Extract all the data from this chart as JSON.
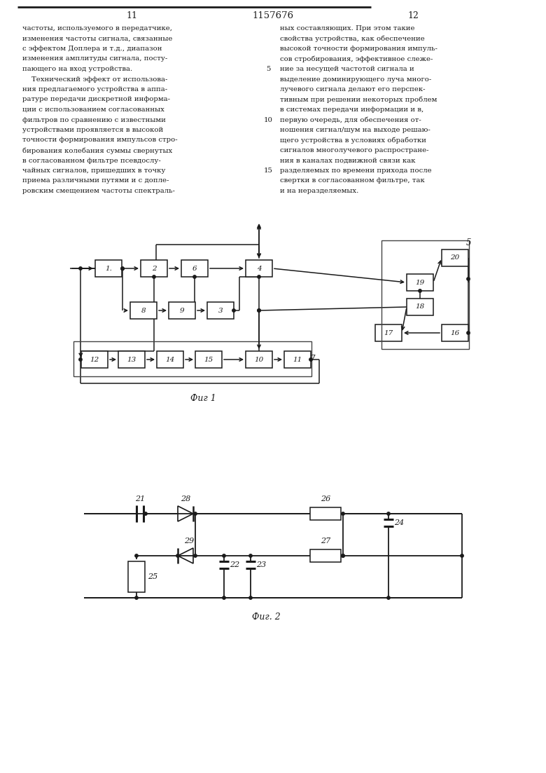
{
  "bg_color": "#ffffff",
  "text_color": "#1a1a1a",
  "line_color": "#1a1a1a",
  "page_title": "1157676",
  "fig1_caption": "Фиг 1",
  "fig2_caption": "Фиг. 2",
  "left_text": [
    "частоты, используемого в передатчике,",
    "изменения частоты сигнала, связанные",
    "с эффектом Доплера и т.д., диапазон",
    "изменения амплитуды сигнала, посту-",
    "пающего на вход устройства.",
    "    Технический эффект от использова-",
    "ния предлагаемого устройства в аппа-",
    "ратуре передачи дискретной информа-",
    "ции с использованием согласованных",
    "фильтров по сравнению с известными",
    "устройствами проявляется в высокой",
    "точности формирования импульсов стро-",
    "бирования колебания суммы свернутых",
    "в согласованном фильтре псевдослу-",
    "чайных сигналов, пришедших в точку",
    "приема различными путями и с допле-",
    "ровским смещением частоты спектраль-"
  ],
  "right_text": [
    "ных составляющих. При этом такие",
    "свойства устройства, как обеспечение",
    "высокой точности формирования импуль-",
    "сов стробирования, эффективное слеже-",
    "ние за несущей частотой сигнала и",
    "выделение доминирующего луча много-",
    "лучевого сигнала делают его перспек-",
    "тивным при решении некоторых проблем",
    "в системах передачи информации и в,",
    "первую очередь, для обеспечения от-",
    "ношения сигнал/шум на выходе решаю-",
    "щего устройства в условиях обработки",
    "сигналов многолучевого распростране-",
    "ния в каналах подвижной связи как",
    "разделяемых по времени прихода после",
    "свертки в согласованном фильтре, так",
    "и на неразделяемых."
  ]
}
